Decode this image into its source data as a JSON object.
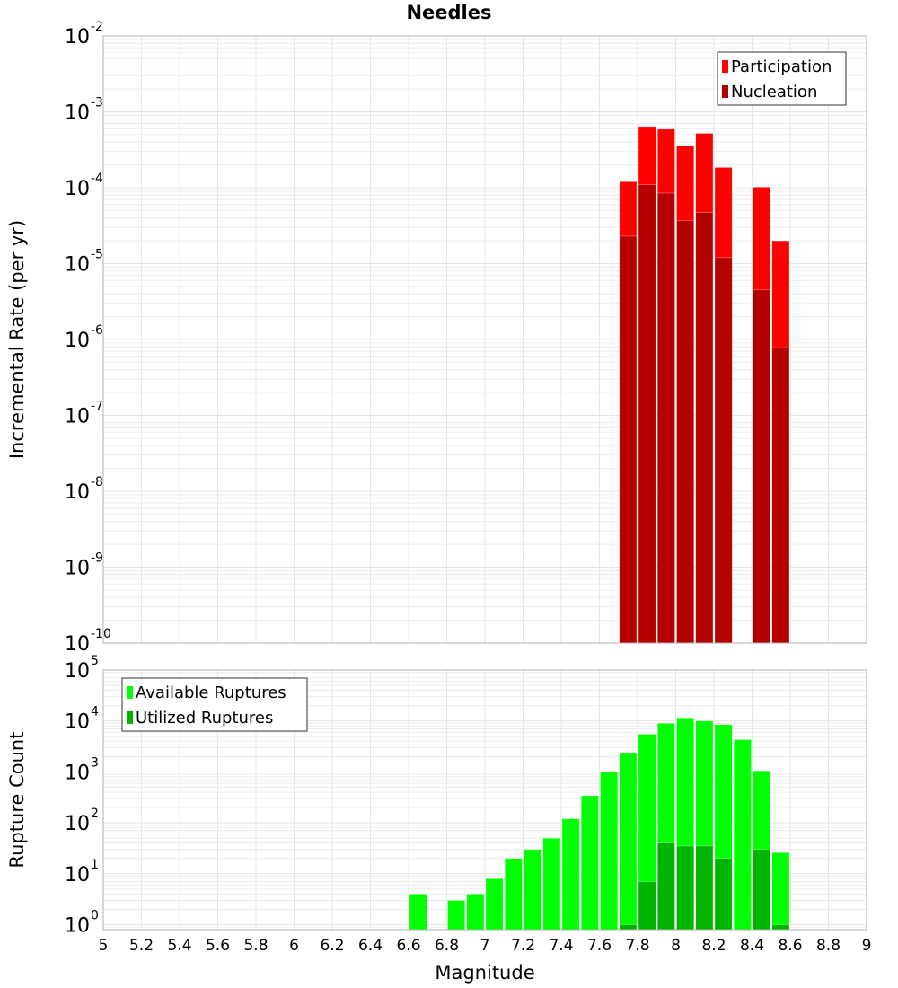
{
  "chart_data": [
    {
      "type": "bar",
      "title": "Needles",
      "xlabel": "",
      "ylabel": "Incremental Rate (per yr)",
      "yscale": "log",
      "ylim": [
        1e-10,
        0.01
      ],
      "xlim": [
        5,
        9
      ],
      "grid": true,
      "legend_position": "top-right",
      "bin_width": 0.1,
      "y_tick_exponents": [
        "-10",
        "-9",
        "-8",
        "-7",
        "-6",
        "-5",
        "-4",
        "-3",
        "-2"
      ],
      "x": [
        7.75,
        7.85,
        7.95,
        8.05,
        8.15,
        8.25,
        8.45,
        8.55
      ],
      "series": [
        {
          "name": "Participation",
          "color": "#ff0000",
          "values": [
            0.00012,
            0.00064,
            0.00059,
            0.00036,
            0.00052,
            0.000185,
            0.000102,
            2e-05
          ]
        },
        {
          "name": "Nucleation",
          "color": "#b40000",
          "values": [
            2.3e-05,
            0.00011,
            8.5e-05,
            3.7e-05,
            4.7e-05,
            1.2e-05,
            4.5e-06,
            7.8e-07
          ]
        }
      ]
    },
    {
      "type": "bar",
      "title": "",
      "xlabel": "Magnitude",
      "ylabel": "Rupture Count",
      "yscale": "log",
      "ylim": [
        0.8,
        100000.0
      ],
      "xlim": [
        5,
        9
      ],
      "grid": true,
      "legend_position": "top-left",
      "bin_width": 0.1,
      "y_tick_exponents": [
        "0",
        "1",
        "2",
        "3",
        "4",
        "5"
      ],
      "x_ticks": [
        "5",
        "5.2",
        "5.4",
        "5.6",
        "5.8",
        "6",
        "6.2",
        "6.4",
        "6.6",
        "6.8",
        "7",
        "7.2",
        "7.4",
        "7.6",
        "7.8",
        "8",
        "8.2",
        "8.4",
        "8.6",
        "8.8",
        "9"
      ],
      "x": [
        6.65,
        6.85,
        6.95,
        7.05,
        7.15,
        7.25,
        7.35,
        7.45,
        7.55,
        7.65,
        7.75,
        7.85,
        7.95,
        8.05,
        8.15,
        8.25,
        8.35,
        8.45,
        8.55
      ],
      "series": [
        {
          "name": "Available Ruptures",
          "color": "#00ff00",
          "values": [
            4,
            3,
            4,
            8,
            20,
            30,
            50,
            120,
            340,
            1000,
            2400,
            5500,
            9000,
            11500,
            10000,
            8500,
            4300,
            1050,
            26
          ]
        },
        {
          "name": "Utilized Ruptures",
          "color": "#00b400",
          "values": [
            0,
            0,
            0,
            0,
            0,
            0,
            0,
            0,
            0,
            0,
            1,
            7,
            40,
            35,
            35,
            20,
            0,
            30,
            1
          ]
        }
      ]
    }
  ]
}
